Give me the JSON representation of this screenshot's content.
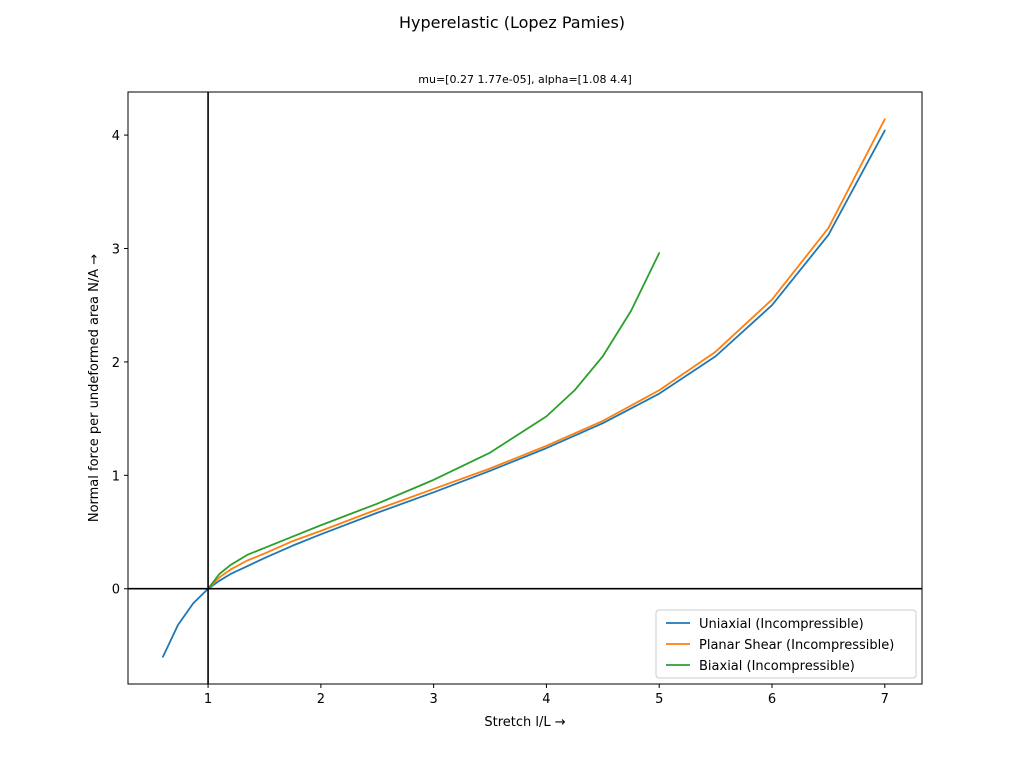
{
  "chart_data": {
    "type": "line",
    "suptitle": "Hyperelastic (Lopez Pamies)",
    "title": "mu=[0.27 1.77e-05], alpha=[1.08 4.4]",
    "xlabel": "Stretch l/L →",
    "ylabel": "Normal force per undeformed area N/A →",
    "xlim": [
      0.29,
      7.33
    ],
    "ylim": [
      -0.84,
      4.38
    ],
    "xticks": [
      1,
      2,
      3,
      4,
      5,
      6,
      7
    ],
    "yticks": [
      0,
      1,
      2,
      3,
      4
    ],
    "reference_lines": {
      "x": 1,
      "y": 0
    },
    "legend_location": "lower-right",
    "series": [
      {
        "name": "Uniaxial (Incompressible)",
        "color": "#1f77b4",
        "x": [
          0.6,
          0.733,
          0.867,
          1.0,
          1.1,
          1.2,
          1.35,
          1.5,
          1.75,
          2.0,
          2.5,
          3.0,
          3.5,
          4.0,
          4.5,
          5.0,
          5.5,
          6.0,
          6.5,
          7.0
        ],
        "y": [
          -0.6,
          -0.32,
          -0.13,
          0.0,
          0.07,
          0.13,
          0.2,
          0.27,
          0.38,
          0.48,
          0.67,
          0.85,
          1.04,
          1.24,
          1.46,
          1.72,
          2.05,
          2.5,
          3.12,
          4.04
        ]
      },
      {
        "name": "Planar Shear (Incompressible)",
        "color": "#ff7f0e",
        "x": [
          1.0,
          1.1,
          1.2,
          1.35,
          1.5,
          1.75,
          2.0,
          2.5,
          3.0,
          3.5,
          4.0,
          4.5,
          5.0,
          5.5,
          6.0,
          6.5,
          7.0
        ],
        "y": [
          0.0,
          0.1,
          0.17,
          0.25,
          0.31,
          0.42,
          0.51,
          0.7,
          0.88,
          1.06,
          1.26,
          1.48,
          1.75,
          2.09,
          2.55,
          3.18,
          4.14
        ]
      },
      {
        "name": "Biaxial (Incompressible)",
        "color": "#2ca02c",
        "x": [
          1.0,
          1.1,
          1.2,
          1.35,
          1.5,
          1.75,
          2.0,
          2.5,
          3.0,
          3.5,
          4.0,
          4.25,
          4.5,
          4.75,
          5.0
        ],
        "y": [
          0.0,
          0.13,
          0.21,
          0.3,
          0.36,
          0.46,
          0.56,
          0.75,
          0.96,
          1.2,
          1.52,
          1.75,
          2.05,
          2.45,
          2.96
        ]
      }
    ]
  }
}
